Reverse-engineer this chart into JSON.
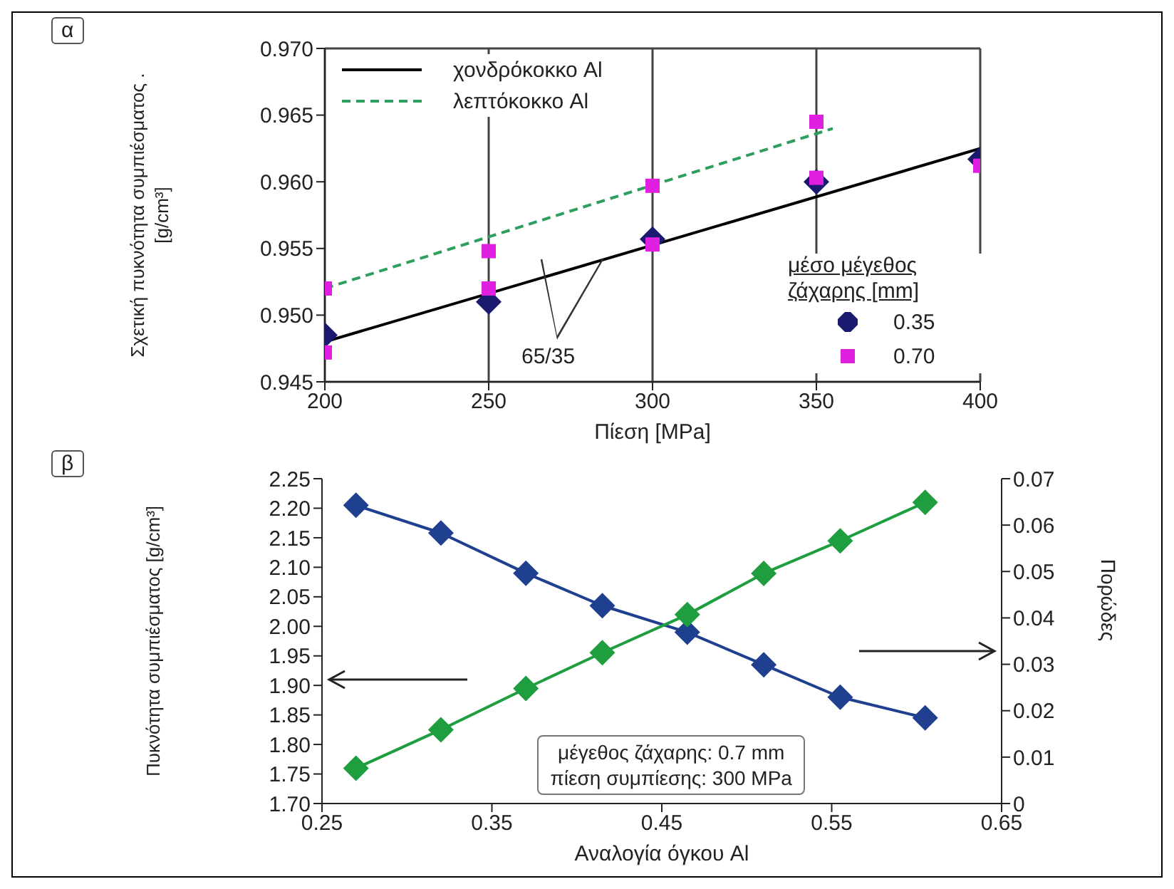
{
  "chart_data": [
    {
      "type": "scatter",
      "xlabel": "Πίεση [MPa]",
      "ylabel": "Σχετική πυκνότητα συμπιέσματος . [g/cm³]",
      "legend_title": "μέσο μέγεθος ζάχαρης [mm]",
      "xlim": [
        200,
        400
      ],
      "xticks": [
        200,
        250,
        300,
        350,
        400
      ],
      "ylim": [
        0.945,
        0.97
      ],
      "yticks": [
        {
          "value": 0.945,
          "label": "0.945"
        },
        {
          "value": 0.95,
          "label": "0.950"
        },
        {
          "value": 0.955,
          "label": "0.955"
        },
        {
          "value": 0.96,
          "label": "0.960"
        },
        {
          "value": 0.965,
          "label": "0.965"
        },
        {
          "value": 0.97,
          "label": "0.970"
        }
      ],
      "grid": true,
      "legend": "top left",
      "annotations": [
        "α",
        "65/35"
      ],
      "series": [
        {
          "name": "χονδρόκοκκο Al",
          "type": "line",
          "color": "#000000",
          "line_style": "solid",
          "x": [
            200,
            400
          ],
          "values": [
            0.948,
            0.9625
          ]
        },
        {
          "name": "λεπτόκοκκο Al",
          "type": "line",
          "color": "#2e9e5e",
          "line_style": "dashed",
          "x": [
            200,
            355
          ],
          "values": [
            0.952,
            0.964
          ]
        },
        {
          "name": "0.35",
          "type": "scatter",
          "color": "#1a1a6e",
          "marker": "diamond",
          "x": [
            200,
            250,
            300,
            350,
            400
          ],
          "values": [
            0.9485,
            0.951,
            0.9557,
            0.96,
            0.9617
          ]
        },
        {
          "name": "0.70",
          "type": "scatter",
          "color": "#e020e0",
          "marker": "square",
          "x": [
            200,
            200,
            250,
            250,
            300,
            300,
            350,
            350,
            400
          ],
          "values": [
            0.952,
            0.9472,
            0.9548,
            0.952,
            0.9597,
            0.9553,
            0.9645,
            0.9603,
            0.9612
          ]
        }
      ]
    },
    {
      "type": "line",
      "xlabel": "Αναλογία όγκου Al",
      "ylabel": "Πυκνότητα συμπιέσματος [g/cm³]",
      "y2label": "Πορώδες",
      "xlim": [
        0.25,
        0.65
      ],
      "xticks": [
        0.25,
        0.35,
        0.45,
        0.55,
        0.65
      ],
      "ylim": [
        1.7,
        2.25
      ],
      "yticks": [
        {
          "value": 1.7,
          "label": "1.70"
        },
        1.75,
        {
          "value": 1.8,
          "label": "1.80"
        },
        1.85,
        {
          "value": 1.9,
          "label": "1.90"
        },
        1.95,
        {
          "value": 2.0,
          "label": "2.00"
        },
        2.05,
        {
          "value": 2.1,
          "label": "2.10"
        },
        2.15,
        {
          "value": 2.2,
          "label": "2.20"
        },
        2.25
      ],
      "y2lim": [
        0,
        0.07
      ],
      "y2ticks": [
        0,
        0.01,
        0.02,
        0.03,
        0.04,
        0.05,
        0.06,
        0.07
      ],
      "grid": false,
      "marker": "diamond",
      "annotations": [
        "β",
        "μέγεθος ζάχαρης: 0.7 mm",
        "πίεση συμπίεσης: 300 MPa"
      ],
      "series": [
        {
          "color": "#1f3f8f",
          "x": [
            0.27,
            0.32,
            0.37,
            0.415,
            0.465,
            0.51,
            0.555,
            0.605
          ],
          "values": [
            2.205,
            2.158,
            2.09,
            2.035,
            1.99,
            1.935,
            1.88,
            1.845
          ]
        },
        {
          "color": "#1e9e3e",
          "axis": "y2",
          "x": [
            0.27,
            0.32,
            0.37,
            0.415,
            0.465,
            0.51,
            0.555,
            0.605
          ],
          "values": [
            0.0076,
            0.0159,
            0.0248,
            0.0325,
            0.0407,
            0.0496,
            0.0566,
            0.0649
          ]
        }
      ]
    }
  ]
}
